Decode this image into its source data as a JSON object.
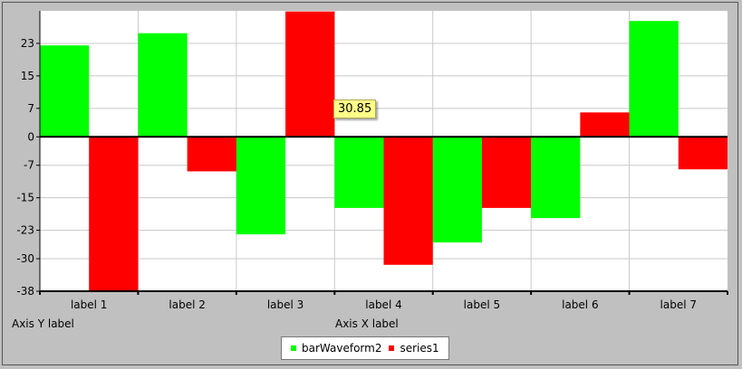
{
  "chart_data": {
    "type": "bar",
    "categories": [
      "label 1",
      "label 2",
      "label 3",
      "label 4",
      "label 5",
      "label 6",
      "label 7"
    ],
    "series": [
      {
        "name": "barWaveform2",
        "color": "#00ff00",
        "values": [
          22.5,
          25.5,
          -24,
          -17.5,
          -26,
          -20,
          28.5
        ]
      },
      {
        "name": "series1",
        "color": "#ff0000",
        "values": [
          -38,
          -8.5,
          30.85,
          -31.5,
          -17.5,
          6,
          -8
        ]
      }
    ],
    "y_ticks": [
      23,
      15,
      7,
      0,
      -7,
      -15,
      -23,
      -30,
      -38
    ],
    "ylim": [
      -38,
      31
    ],
    "xlabel": "Axis X label",
    "ylabel": "Axis Y label",
    "grid": true,
    "legend_position": "bottom-center",
    "tooltip": "30.85"
  }
}
